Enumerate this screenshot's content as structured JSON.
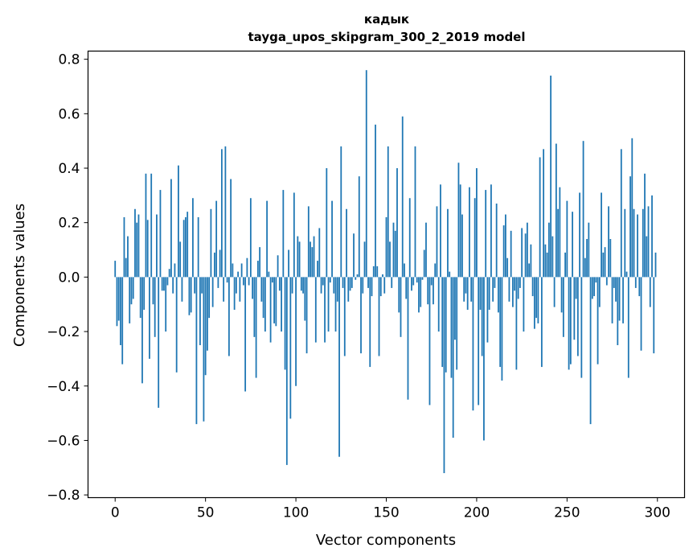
{
  "chart_data": {
    "type": "bar",
    "title": "кадык",
    "subtitle": "tayga_upos_skipgram_300_2_2019 model",
    "xlabel": "Vector components",
    "ylabel": "Components values",
    "xlim": [
      -15,
      315
    ],
    "ylim": [
      -0.81,
      0.83
    ],
    "xticks": [
      0,
      50,
      100,
      150,
      200,
      250,
      300
    ],
    "yticks": [
      -0.8,
      -0.6,
      -0.4,
      -0.2,
      0.0,
      0.2,
      0.4,
      0.6,
      0.8
    ],
    "xtick_labels": [
      "0",
      "50",
      "100",
      "150",
      "200",
      "250",
      "300"
    ],
    "ytick_labels": [
      "−0.8",
      "−0.6",
      "−0.4",
      "−0.2",
      "0.0",
      "0.2",
      "0.4",
      "0.6",
      "0.8"
    ],
    "bar_color": "#1f77b4",
    "grid": false,
    "x": "0..299 (component index)",
    "values": [
      0.06,
      -0.18,
      -0.16,
      -0.25,
      -0.32,
      0.22,
      0.07,
      0.15,
      -0.17,
      -0.1,
      -0.08,
      0.25,
      0.2,
      0.23,
      -0.15,
      -0.39,
      -0.12,
      0.38,
      0.21,
      -0.3,
      0.38,
      -0.1,
      -0.22,
      0.23,
      -0.48,
      0.32,
      -0.05,
      -0.05,
      -0.2,
      -0.03,
      0.03,
      0.36,
      -0.06,
      0.05,
      -0.35,
      0.41,
      0.13,
      -0.09,
      0.21,
      0.22,
      0.24,
      -0.14,
      -0.13,
      0.29,
      -0.06,
      -0.54,
      0.22,
      -0.25,
      -0.06,
      -0.53,
      -0.36,
      -0.27,
      -0.15,
      0.25,
      -0.11,
      0.09,
      0.28,
      -0.04,
      0.1,
      0.47,
      -0.09,
      0.48,
      -0.02,
      -0.29,
      0.36,
      0.05,
      -0.12,
      -0.06,
      0.02,
      -0.09,
      0.05,
      -0.03,
      -0.42,
      0.07,
      -0.03,
      0.29,
      -0.08,
      -0.22,
      -0.37,
      0.06,
      0.11,
      -0.09,
      -0.15,
      -0.2,
      0.28,
      0.02,
      -0.24,
      -0.02,
      -0.17,
      -0.18,
      0.08,
      -0.05,
      -0.2,
      0.32,
      -0.34,
      -0.69,
      0.1,
      -0.52,
      -0.06,
      0.31,
      -0.4,
      0.15,
      0.13,
      -0.05,
      -0.06,
      -0.16,
      -0.28,
      0.26,
      0.13,
      0.11,
      0.15,
      -0.24,
      0.06,
      0.18,
      -0.06,
      -0.03,
      -0.24,
      0.4,
      -0.2,
      -0.02,
      0.28,
      -0.06,
      -0.2,
      -0.09,
      -0.66,
      0.48,
      -0.04,
      -0.29,
      0.25,
      -0.09,
      -0.05,
      -0.04,
      0.16,
      -0.01,
      0.01,
      0.37,
      -0.28,
      -0.06,
      0.13,
      0.76,
      -0.04,
      -0.33,
      -0.07,
      0.04,
      0.56,
      0.04,
      -0.29,
      -0.07,
      0.01,
      -0.06,
      0.22,
      0.48,
      0.13,
      -0.04,
      0.2,
      0.17,
      0.4,
      -0.13,
      -0.22,
      0.59,
      0.05,
      -0.08,
      -0.45,
      0.29,
      -0.05,
      -0.03,
      0.48,
      -0.02,
      -0.13,
      -0.11,
      -0.01,
      0.1,
      0.2,
      -0.1,
      -0.47,
      -0.03,
      -0.1,
      0.05,
      0.26,
      -0.2,
      0.34,
      -0.33,
      -0.72,
      -0.35,
      0.25,
      0.02,
      -0.37,
      -0.59,
      -0.23,
      -0.34,
      0.42,
      0.34,
      0.23,
      -0.09,
      -0.06,
      -0.12,
      0.33,
      -0.09,
      -0.49,
      0.29,
      0.4,
      -0.47,
      -0.12,
      -0.29,
      -0.6,
      0.32,
      -0.24,
      -0.12,
      0.34,
      -0.09,
      -0.04,
      0.27,
      -0.13,
      -0.33,
      -0.38,
      0.19,
      0.23,
      0.07,
      -0.09,
      0.17,
      -0.11,
      -0.05,
      -0.34,
      -0.08,
      -0.04,
      0.18,
      -0.2,
      0.16,
      0.2,
      0.05,
      0.12,
      -0.07,
      -0.19,
      -0.15,
      -0.17,
      0.44,
      -0.33,
      0.47,
      0.12,
      0.09,
      0.2,
      0.74,
      0.15,
      -0.11,
      0.49,
      0.25,
      0.33,
      -0.13,
      -0.22,
      0.09,
      0.28,
      -0.34,
      -0.32,
      0.24,
      -0.23,
      -0.08,
      -0.29,
      0.31,
      -0.37,
      0.5,
      0.07,
      0.14,
      0.2,
      -0.54,
      -0.08,
      -0.07,
      -0.02,
      -0.32,
      -0.11,
      0.31,
      0.09,
      0.11,
      -0.03,
      0.26,
      0.14,
      -0.17,
      -0.04,
      -0.09,
      -0.25,
      -0.16,
      0.47,
      -0.17,
      0.25,
      0.02,
      -0.37,
      0.37,
      0.51,
      0.25,
      -0.04,
      0.23,
      -0.07,
      -0.27,
      0.25,
      0.38,
      0.15,
      0.26,
      -0.11,
      0.3,
      -0.28,
      0.09
    ]
  }
}
